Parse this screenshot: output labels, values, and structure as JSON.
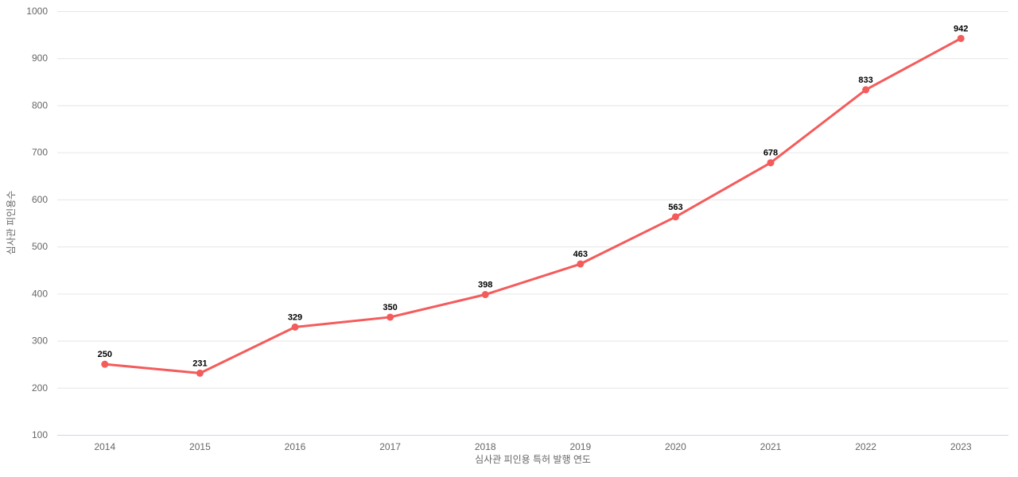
{
  "chart_data": {
    "type": "line",
    "categories": [
      "2014",
      "2015",
      "2016",
      "2017",
      "2018",
      "2019",
      "2020",
      "2021",
      "2022",
      "2023"
    ],
    "series": [
      {
        "name": "심사관 피인용수",
        "values": [
          250,
          231,
          329,
          350,
          398,
          463,
          563,
          678,
          833,
          942
        ]
      }
    ],
    "title": "",
    "xlabel": "심사관 피인용 특허 발행 연도",
    "ylabel": "심사관 피인용수",
    "ylim": [
      100,
      1000
    ],
    "ytick_step": 100,
    "yticks": [
      100,
      200,
      300,
      400,
      500,
      600,
      700,
      800,
      900,
      1000
    ],
    "grid": "horizontal",
    "legend_position": "none",
    "data_labels_visible": true,
    "colors": {
      "line": "#f45b5b",
      "marker": "#f45b5b",
      "grid": "#e6e6e6",
      "axis_line": "#ccd6eb",
      "tick_label": "#666666",
      "axis_title": "#666666",
      "data_label": "#000000",
      "background": "#ffffff"
    }
  }
}
